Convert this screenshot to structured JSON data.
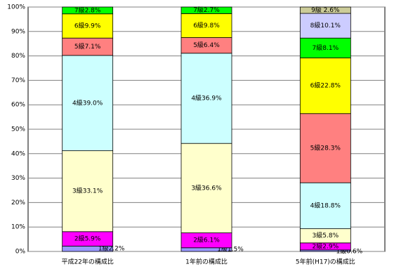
{
  "chart_data": {
    "type": "stacked-bar",
    "categories": [
      "平成22年の構成比",
      "1年前の構成比",
      "5年前(H17)の構成比"
    ],
    "series": [
      {
        "color": "#9999ff",
        "values": [
          2.2,
          1.5,
          0.6
        ],
        "value_labels": [
          "1級2.2%",
          "1級1.5%",
          "1級0.6%"
        ]
      },
      {
        "color": "#ff00ff",
        "values": [
          5.9,
          6.1,
          2.9
        ],
        "value_labels": [
          "2級5.9%",
          "2級6.1%",
          "2級2.9%"
        ]
      },
      {
        "color": "#ffffcc",
        "values": [
          33.1,
          36.6,
          5.8
        ],
        "value_labels": [
          "3級33.1%",
          "3級36.6%",
          "3級5.8%"
        ]
      },
      {
        "color": "#ccffff",
        "values": [
          39.0,
          36.9,
          18.8
        ],
        "value_labels": [
          "4級39.0%",
          "4級36.9%",
          "4級18.8%"
        ]
      },
      {
        "color": "#ff8080",
        "values": [
          7.1,
          6.4,
          28.3
        ],
        "value_labels": [
          "5級7.1%",
          "5級6.4%",
          "5級28.3%"
        ]
      },
      {
        "color": "#ffff00",
        "values": [
          9.9,
          9.8,
          22.8
        ],
        "value_labels": [
          "6級9.9%",
          "6級9.8%",
          "6級22.8%"
        ]
      },
      {
        "color": "#00ff00",
        "values": [
          2.8,
          2.7,
          8.1
        ],
        "value_labels": [
          "7級2.8%",
          "7級2.7%",
          "7級8.1%"
        ]
      },
      {
        "color": "#ccccff",
        "values": [
          null,
          null,
          10.1
        ],
        "value_labels": [
          null,
          null,
          "8級10.1%"
        ]
      },
      {
        "color": "#cccc99",
        "values": [
          null,
          null,
          2.6
        ],
        "value_labels": [
          null,
          null,
          "9級 2.6%"
        ]
      }
    ],
    "ylim": [
      0,
      100
    ],
    "yticks": [
      {
        "value": 0,
        "label": "0%"
      },
      {
        "value": 10,
        "label": "10%"
      },
      {
        "value": 20,
        "label": "20%"
      },
      {
        "value": 30,
        "label": "30%"
      },
      {
        "value": 40,
        "label": "40%"
      },
      {
        "value": 50,
        "label": "50%"
      },
      {
        "value": 60,
        "label": "60%"
      },
      {
        "value": 70,
        "label": "70%"
      },
      {
        "value": 80,
        "label": "80%"
      },
      {
        "value": 90,
        "label": "90%"
      },
      {
        "value": 100,
        "label": "100%"
      }
    ],
    "grid": true
  }
}
